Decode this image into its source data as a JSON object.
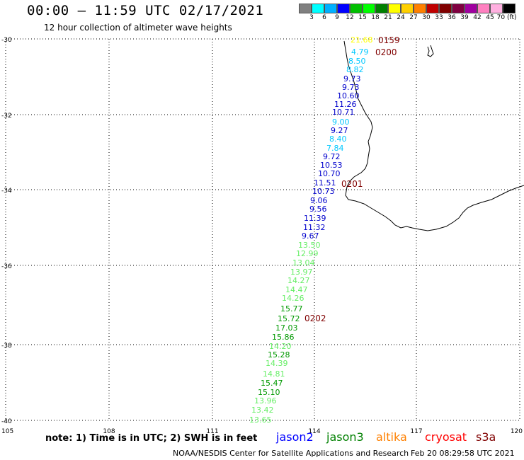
{
  "header": {
    "title": "00:00 – 11:59 UTC 02/17/2021",
    "subtitle": "12 hour collection of altimeter wave heights"
  },
  "color_scale": {
    "colors": [
      "#808080",
      "#00ffff",
      "#00b0ff",
      "#0000ff",
      "#00c000",
      "#00ff00",
      "#008000",
      "#ffff00",
      "#ffd000",
      "#ff8000",
      "#c00000",
      "#800000",
      "#800040",
      "#a000a0",
      "#ff80c0",
      "#ffb0e0",
      "#000000"
    ],
    "labels": [
      "3",
      "6",
      "9",
      "12",
      "15",
      "18",
      "21",
      "24",
      "27",
      "30",
      "33",
      "36",
      "39",
      "42",
      "45",
      "70 (ft)"
    ]
  },
  "axes": {
    "y_labels": [
      "-30",
      "-32",
      "-34",
      "-36",
      "-38",
      "-40"
    ],
    "x_labels": [
      "105",
      "108",
      "111",
      "114",
      "117",
      "120"
    ]
  },
  "timestamps": [
    "0159",
    "0200",
    "0201",
    "0202"
  ],
  "observations": [
    {
      "v": "21.68",
      "c": "#ffff00"
    },
    {
      "v": "4.79",
      "c": "#00c8ff"
    },
    {
      "v": "8.50",
      "c": "#00c8ff"
    },
    {
      "v": "8.82",
      "c": "#00c8ff"
    },
    {
      "v": "9.73",
      "c": "#0000cc"
    },
    {
      "v": "9.73",
      "c": "#0000cc"
    },
    {
      "v": "10.60",
      "c": "#0000cc"
    },
    {
      "v": "11.26",
      "c": "#0000cc"
    },
    {
      "v": "10.71",
      "c": "#0000cc"
    },
    {
      "v": "9.00",
      "c": "#00c8ff"
    },
    {
      "v": "9.27",
      "c": "#0000cc"
    },
    {
      "v": "8.40",
      "c": "#00c8ff"
    },
    {
      "v": "7.84",
      "c": "#00c8ff"
    },
    {
      "v": "9.72",
      "c": "#0000cc"
    },
    {
      "v": "10.53",
      "c": "#0000cc"
    },
    {
      "v": "10.70",
      "c": "#0000cc"
    },
    {
      "v": "11.51",
      "c": "#0000cc"
    },
    {
      "v": "10.73",
      "c": "#0000cc"
    },
    {
      "v": "9.06",
      "c": "#0000cc"
    },
    {
      "v": "9.56",
      "c": "#0000cc"
    },
    {
      "v": "11.39",
      "c": "#0000cc"
    },
    {
      "v": "11.32",
      "c": "#0000cc"
    },
    {
      "v": "9.67",
      "c": "#0000cc"
    },
    {
      "v": "13.50",
      "c": "#66ee66"
    },
    {
      "v": "12.99",
      "c": "#66ee66"
    },
    {
      "v": "13.04",
      "c": "#66ee66"
    },
    {
      "v": "13.97",
      "c": "#66ee66"
    },
    {
      "v": "14.27",
      "c": "#66ee66"
    },
    {
      "v": "14.47",
      "c": "#66ee66"
    },
    {
      "v": "14.26",
      "c": "#66ee66"
    },
    {
      "v": "15.77",
      "c": "#009900"
    },
    {
      "v": "15.72",
      "c": "#009900"
    },
    {
      "v": "17.03",
      "c": "#009900"
    },
    {
      "v": "15.86",
      "c": "#009900"
    },
    {
      "v": "14.20",
      "c": "#66ee66"
    },
    {
      "v": "15.28",
      "c": "#009900"
    },
    {
      "v": "14.39",
      "c": "#66ee66"
    },
    {
      "v": "14.81",
      "c": "#66ee66"
    },
    {
      "v": "15.47",
      "c": "#009900"
    },
    {
      "v": "15.10",
      "c": "#009900"
    },
    {
      "v": "13.96",
      "c": "#66ee66"
    },
    {
      "v": "13.42",
      "c": "#66ee66"
    },
    {
      "v": "13.65",
      "c": "#66ee66"
    }
  ],
  "note": "note:  1) Time is in UTC;  2) SWH is in feet",
  "satellites": [
    {
      "name": "jason2",
      "color": "#0000ff"
    },
    {
      "name": "jason3",
      "color": "#008000"
    },
    {
      "name": "altika",
      "color": "#ff8000"
    },
    {
      "name": "cryosat",
      "color": "#ff0000"
    },
    {
      "name": "s3a",
      "color": "#800000"
    }
  ],
  "footer": {
    "credit": "NOAA/NESDIS Center for Satellite Applications and Research",
    "generated": "Feb 20 08:29:58 UTC 2021"
  }
}
